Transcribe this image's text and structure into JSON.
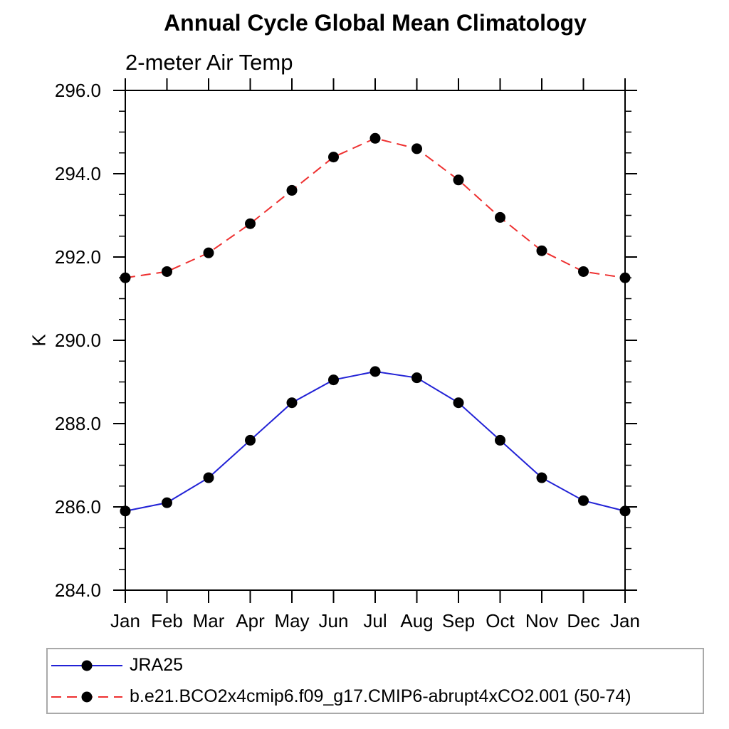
{
  "chart_data": {
    "type": "line",
    "title": "Annual Cycle Global Mean Climatology",
    "subtitle": "2-meter Air Temp",
    "ylabel": "K",
    "xlabel": "",
    "categories": [
      "Jan",
      "Feb",
      "Mar",
      "Apr",
      "May",
      "Jun",
      "Jul",
      "Aug",
      "Sep",
      "Oct",
      "Nov",
      "Dec",
      "Jan"
    ],
    "ylim": [
      284.0,
      296.0
    ],
    "ytick_major_step": 2.0,
    "ytick_minor_step": 0.5,
    "ytick_label_format": "one_decimal",
    "grid": false,
    "legend_position": "bottom-left-box",
    "series": [
      {
        "name": "JRA25",
        "line_style": "solid",
        "line_color": "#2222d6",
        "marker": "filled-circle",
        "marker_color": "#000000",
        "values": [
          285.9,
          286.1,
          286.7,
          287.6,
          288.5,
          289.05,
          289.25,
          289.1,
          288.5,
          287.6,
          286.7,
          286.15,
          285.9
        ]
      },
      {
        "name": "b.e21.BCO2x4cmip6.f09_g17.CMIP6-abrupt4xCO2.001 (50-74)",
        "line_style": "dashed",
        "line_color": "#ee3030",
        "marker": "filled-circle",
        "marker_color": "#000000",
        "values": [
          291.5,
          291.65,
          292.1,
          292.8,
          293.6,
          294.4,
          294.85,
          294.6,
          293.85,
          292.95,
          292.15,
          291.65,
          291.5
        ]
      }
    ],
    "axis_color": "#000000",
    "legend_border_color": "#a9a9a9"
  }
}
